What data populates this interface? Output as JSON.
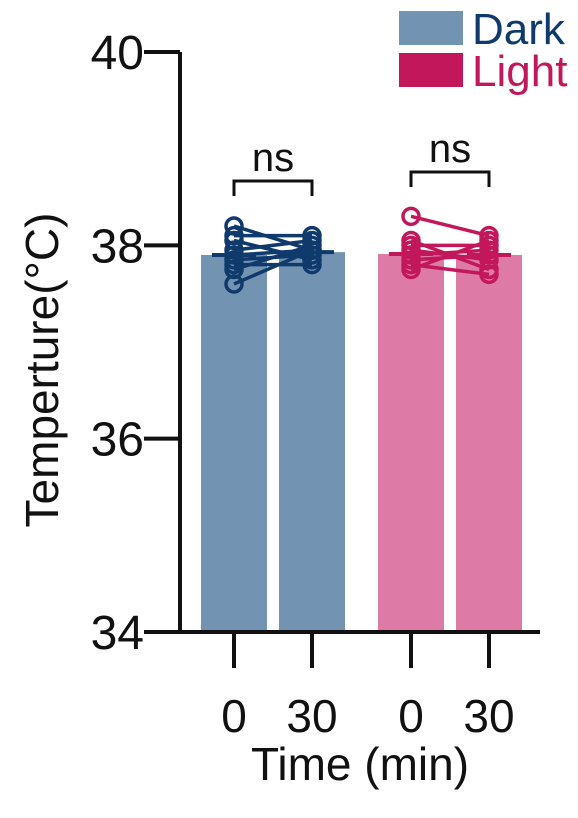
{
  "chart_data": {
    "type": "bar",
    "ylabel": "Temperture(°C)",
    "xlabel": "Time (min)",
    "ylim": [
      34,
      40
    ],
    "yticks": [
      "34",
      "36",
      "38",
      "40"
    ],
    "colors": {
      "dark_bar": "#7393B3",
      "dark_line": "#0F3A6B",
      "light_bar": "#DE7AA6",
      "light_line": "#C2185B"
    },
    "legend": [
      {
        "label": "Dark",
        "color": "#0F3A6B",
        "swatch": "#7393B3"
      },
      {
        "label": "Light",
        "color": "#C2185B",
        "swatch": "#C2185B"
      }
    ],
    "groups": [
      {
        "name": "Dark",
        "categories": [
          "0",
          "30"
        ],
        "means": [
          37.9,
          37.93
        ],
        "paired_points": [
          [
            38.2,
            37.95
          ],
          [
            38.1,
            38.1
          ],
          [
            38.05,
            37.85
          ],
          [
            37.95,
            38.05
          ],
          [
            37.9,
            37.95
          ],
          [
            37.85,
            37.9
          ],
          [
            37.8,
            37.8
          ],
          [
            37.75,
            38.0
          ],
          [
            37.6,
            37.95
          ]
        ],
        "significance": "ns"
      },
      {
        "name": "Light",
        "categories": [
          "0",
          "30"
        ],
        "means": [
          37.91,
          37.9
        ],
        "paired_points": [
          [
            38.3,
            38.1
          ],
          [
            38.0,
            38.0
          ],
          [
            37.95,
            37.85
          ],
          [
            37.9,
            37.95
          ],
          [
            37.85,
            37.9
          ],
          [
            37.8,
            37.7
          ],
          [
            37.75,
            38.05
          ],
          [
            38.05,
            37.75
          ]
        ],
        "significance": "ns"
      }
    ]
  }
}
